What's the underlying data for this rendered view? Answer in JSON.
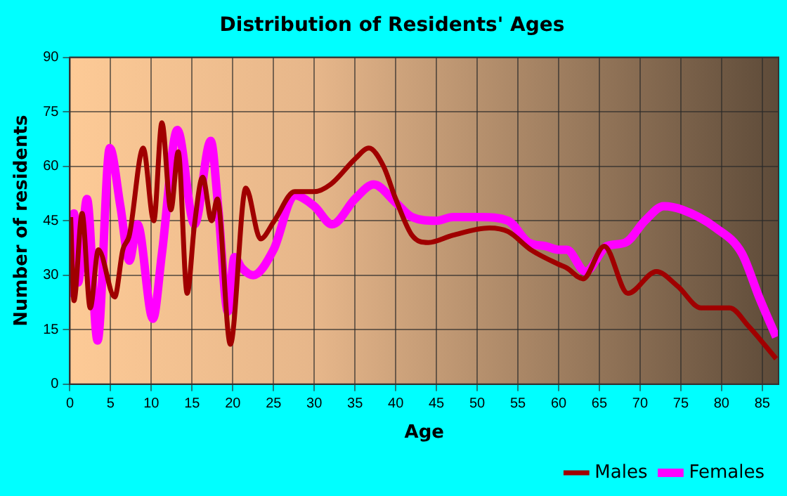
{
  "chart_data": {
    "type": "line",
    "title": "Distribution of Residents' Ages",
    "xlabel": "Age",
    "ylabel": "Number of residents",
    "xlim": [
      0,
      87
    ],
    "xticks": [
      0,
      5,
      10,
      15,
      20,
      25,
      30,
      35,
      40,
      45,
      50,
      55,
      60,
      65,
      70,
      75,
      80,
      85
    ],
    "ylim": [
      0,
      90
    ],
    "yticks": [
      0,
      15,
      30,
      45,
      60,
      75,
      90
    ],
    "grid": true,
    "legend": "bottom right",
    "marker": "none",
    "line_style": "solid",
    "series": [
      {
        "name": "Males",
        "color": "#a00000",
        "x": [
          0.1,
          0.5,
          1.5,
          2.5,
          3.5,
          5.5,
          6.5,
          7.3,
          9,
          10.3,
          11.3,
          12.4,
          13.3,
          14.4,
          15.3,
          16.3,
          17.4,
          18.1,
          19.7,
          21.6,
          23.4,
          25.1,
          27.6,
          30,
          32,
          35,
          36.7,
          38.5,
          40,
          42,
          44,
          47,
          51.5,
          53.8,
          56.6,
          60,
          61,
          63,
          65.6,
          68.5,
          72,
          74.6,
          77.5,
          81,
          83.3,
          86.7
        ],
        "values": [
          46,
          23,
          47,
          21,
          37,
          24,
          37,
          41,
          65,
          45,
          72,
          48,
          64,
          25,
          44,
          57,
          45,
          51,
          11,
          54,
          40,
          45,
          53,
          53,
          55,
          62,
          65,
          60,
          51,
          41,
          39,
          41,
          43,
          42,
          37,
          33,
          32,
          29,
          38,
          25,
          31,
          27,
          21,
          21,
          16,
          7
        ]
      },
      {
        "name": "Females",
        "color": "#ff00ff",
        "x": [
          0.1,
          0.5,
          1,
          2.1,
          3.4,
          4.9,
          6.2,
          7.3,
          8.3,
          10.2,
          11.3,
          13.2,
          15.3,
          17.3,
          18.2,
          19.4,
          20.2,
          21.1,
          22.5,
          25,
          27.6,
          30,
          32.2,
          35,
          37.3,
          40,
          42,
          45,
          47,
          50.5,
          53.8,
          56.3,
          58.4,
          60,
          61,
          63.3,
          65.9,
          68.2,
          70.6,
          72.9,
          75.2,
          79.3,
          82.5,
          84.6,
          86.7
        ],
        "values": [
          24,
          47,
          28,
          51,
          12,
          65,
          49,
          34,
          44,
          18,
          36,
          70,
          44,
          67,
          49,
          20,
          35,
          32,
          30,
          37,
          52,
          49,
          44,
          51,
          55,
          50,
          46,
          45,
          46,
          46,
          45,
          39,
          38,
          37,
          37,
          31,
          38,
          39,
          45,
          49,
          48,
          43,
          36,
          24,
          13
        ]
      }
    ]
  }
}
